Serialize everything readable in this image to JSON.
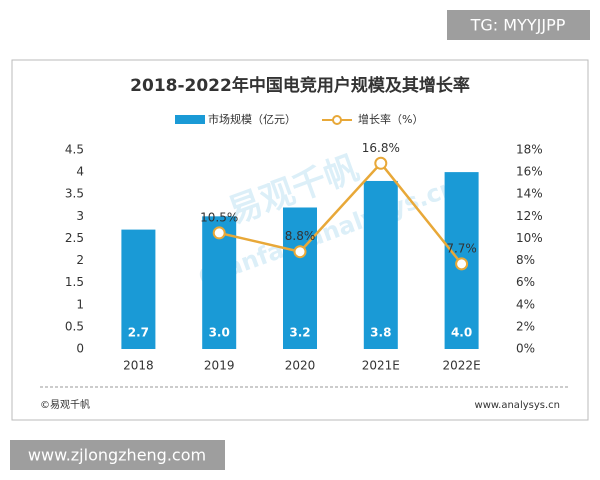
{
  "tag": "TG: MYYJJPP",
  "footer_left": "©易观千帆",
  "footer_right": "www.analysys.cn",
  "site": "www.zjlongzheng.com",
  "watermark": [
    "易观千帆",
    "Qianfan.analysys.cn"
  ],
  "chart_data": {
    "type": "bar",
    "title": "2018-2022年中国电竞用户规模及其增长率",
    "categories": [
      "2018",
      "2019",
      "2020",
      "2021E",
      "2022E"
    ],
    "series": [
      {
        "name": "市场规模（亿元）",
        "color": "#1a9ad6",
        "values": [
          2.7,
          3.0,
          3.2,
          3.8,
          4.0
        ],
        "value_labels": [
          "2.7",
          "3.0",
          "3.2",
          "3.8",
          "4.0"
        ]
      },
      {
        "name": "增长率（%）",
        "type": "line",
        "axis": "y2",
        "color": "#e8a838",
        "values": [
          null,
          10.5,
          8.8,
          16.8,
          7.7
        ],
        "value_labels": [
          null,
          "10.5%",
          "8.8%",
          "16.8%",
          "7.7%"
        ]
      }
    ],
    "ylim": [
      0,
      4.5
    ],
    "yticks": [
      0,
      0.5,
      1,
      1.5,
      2,
      2.5,
      3,
      3.5,
      4,
      4.5
    ],
    "y2lim": [
      0,
      18
    ],
    "y2ticks": [
      {
        "value": 0,
        "label": "0%"
      },
      {
        "value": 2,
        "label": "2%"
      },
      {
        "value": 4,
        "label": "4%"
      },
      {
        "value": 6,
        "label": "6%"
      },
      {
        "value": 8,
        "label": "8%"
      },
      {
        "value": 10,
        "label": "10%"
      },
      {
        "value": 12,
        "label": "12%"
      },
      {
        "value": 14,
        "label": "14%"
      },
      {
        "value": 16,
        "label": "16%"
      },
      {
        "value": 18,
        "label": "18%"
      }
    ]
  }
}
